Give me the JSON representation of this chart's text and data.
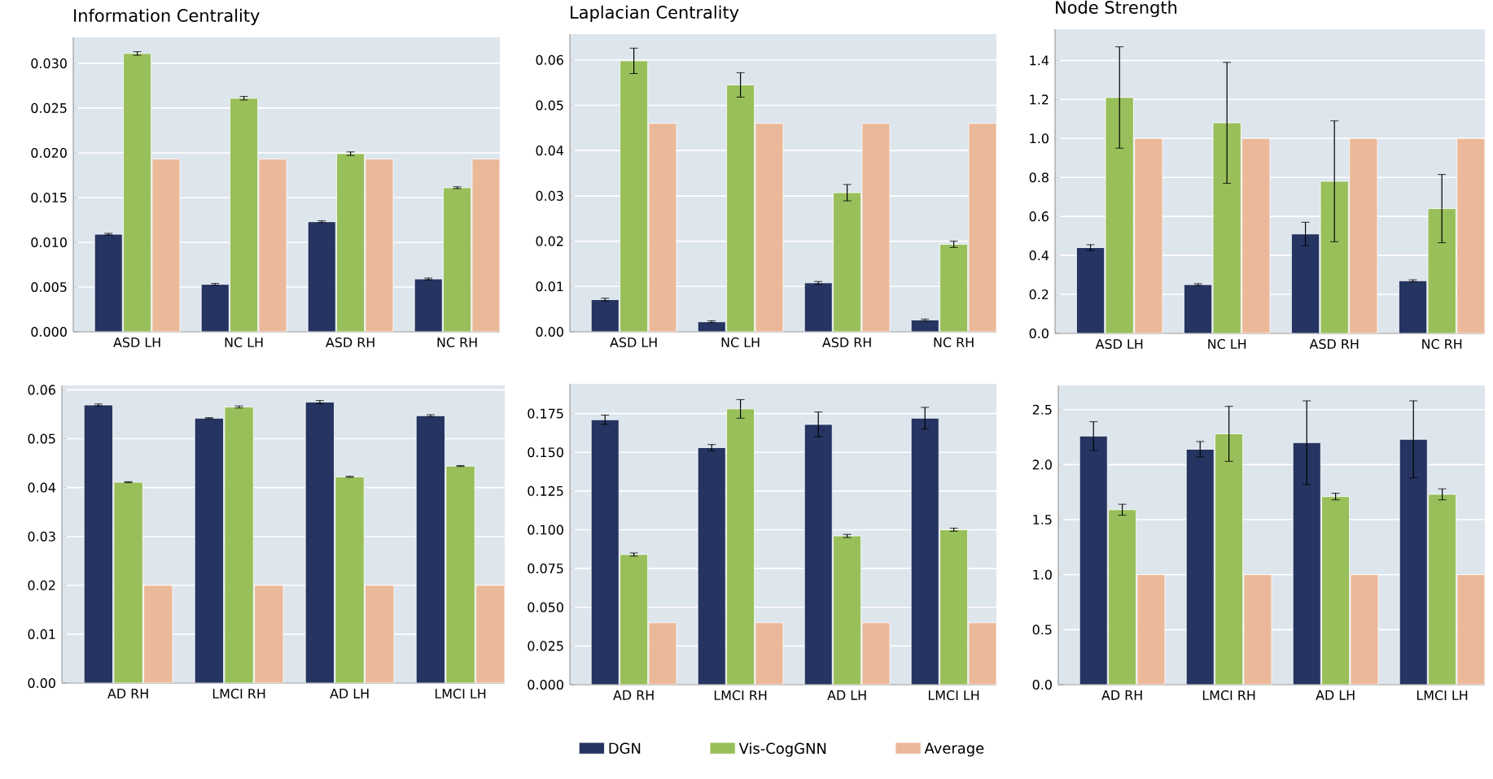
{
  "chart_data": [
    {
      "type": "bar",
      "title": "Information Centrality",
      "categories": [
        "ASD LH",
        "NC LH",
        "ASD RH",
        "NC RH"
      ],
      "ylim": [
        0,
        0.0329
      ],
      "yticks": [
        {
          "value": 0,
          "label": "0.000"
        },
        {
          "value": 0.005,
          "label": "0.005"
        },
        {
          "value": 0.01,
          "label": "0.010"
        },
        {
          "value": 0.015,
          "label": "0.015"
        },
        {
          "value": 0.02,
          "label": "0.020"
        },
        {
          "value": 0.025,
          "label": "0.025"
        },
        {
          "value": 0.03,
          "label": "0.030"
        }
      ],
      "grid": "y",
      "series": [
        {
          "color": "#253461",
          "values": [
            0.0109,
            0.0053,
            0.0123,
            0.0059
          ],
          "errors": [
            0.0001,
            0.0001,
            0.0001,
            0.0001
          ]
        },
        {
          "color": "#98bf5a",
          "values": [
            0.0311,
            0.0261,
            0.0199,
            0.0161
          ],
          "errors": [
            0.0002,
            0.0002,
            0.0002,
            0.0001
          ]
        },
        {
          "color": "#ebb99a",
          "values": [
            0.0193,
            0.0193,
            0.0193,
            0.0193
          ]
        }
      ]
    },
    {
      "type": "bar",
      "title": "Laplacian Centrality",
      "categories": [
        "ASD LH",
        "NC LH",
        "ASD RH",
        "NC RH"
      ],
      "ylim": [
        0,
        0.0657
      ],
      "yticks": [
        {
          "value": 0,
          "label": "0.00"
        },
        {
          "value": 0.01,
          "label": "0.01"
        },
        {
          "value": 0.02,
          "label": "0.02"
        },
        {
          "value": 0.03,
          "label": "0.03"
        },
        {
          "value": 0.04,
          "label": "0.04"
        },
        {
          "value": 0.05,
          "label": "0.05"
        },
        {
          "value": 0.06,
          "label": "0.06"
        }
      ],
      "grid": "y",
      "series": [
        {
          "color": "#253461",
          "values": [
            0.0071,
            0.0022,
            0.0108,
            0.0026
          ],
          "errors": [
            0.0003,
            0.0002,
            0.0003,
            0.0002
          ]
        },
        {
          "color": "#98bf5a",
          "values": [
            0.0598,
            0.0545,
            0.0307,
            0.0193
          ],
          "errors": [
            0.0028,
            0.0027,
            0.0018,
            0.0007
          ]
        },
        {
          "color": "#ebb99a",
          "values": [
            0.046,
            0.046,
            0.046,
            0.046
          ]
        }
      ]
    },
    {
      "type": "bar",
      "title": "Node Strength",
      "categories": [
        "ASD LH",
        "NC LH",
        "ASD RH",
        "NC RH"
      ],
      "ylim": [
        0,
        1.56
      ],
      "yticks": [
        {
          "value": 0,
          "label": "0.0"
        },
        {
          "value": 0.2,
          "label": "0.2"
        },
        {
          "value": 0.4,
          "label": "0.4"
        },
        {
          "value": 0.6,
          "label": "0.6"
        },
        {
          "value": 0.8,
          "label": "0.8"
        },
        {
          "value": 1,
          "label": "1.0"
        },
        {
          "value": 1.2,
          "label": "1.2"
        },
        {
          "value": 1.4,
          "label": "1.4"
        }
      ],
      "grid": "y",
      "series": [
        {
          "color": "#253461",
          "values": [
            0.44,
            0.25,
            0.51,
            0.27
          ],
          "errors": [
            0.015,
            0.005,
            0.06,
            0.005
          ]
        },
        {
          "color": "#98bf5a",
          "values": [
            1.21,
            1.08,
            0.78,
            0.64
          ],
          "errors": [
            0.26,
            0.31,
            0.31,
            0.175
          ]
        },
        {
          "color": "#ebb99a",
          "values": [
            1.0,
            1.0,
            1.0,
            1.0
          ]
        }
      ]
    },
    {
      "type": "bar",
      "categories": [
        "AD RH",
        "LMCI RH",
        "AD LH",
        "LMCI LH"
      ],
      "ylim": [
        0,
        0.0609
      ],
      "yticks": [
        {
          "value": 0,
          "label": "0.00"
        },
        {
          "value": 0.01,
          "label": "0.01"
        },
        {
          "value": 0.02,
          "label": "0.02"
        },
        {
          "value": 0.03,
          "label": "0.03"
        },
        {
          "value": 0.04,
          "label": "0.04"
        },
        {
          "value": 0.05,
          "label": "0.05"
        },
        {
          "value": 0.06,
          "label": "0.06"
        }
      ],
      "grid": "y",
      "series": [
        {
          "color": "#253461",
          "values": [
            0.0569,
            0.0542,
            0.0575,
            0.0547
          ],
          "errors": [
            0.0002,
            0.0001,
            0.0003,
            0.0002
          ]
        },
        {
          "color": "#98bf5a",
          "values": [
            0.0411,
            0.0565,
            0.0422,
            0.0444
          ],
          "errors": [
            0.0001,
            0.0002,
            0.0001,
            0.0001
          ]
        },
        {
          "color": "#ebb99a",
          "values": [
            0.02,
            0.02,
            0.02,
            0.02
          ]
        }
      ]
    },
    {
      "type": "bar",
      "categories": [
        "AD RH",
        "LMCI RH",
        "AD LH",
        "LMCI LH"
      ],
      "ylim": [
        0,
        0.1942
      ],
      "yticks": [
        {
          "value": 0,
          "label": "0.000"
        },
        {
          "value": 0.025,
          "label": "0.025"
        },
        {
          "value": 0.05,
          "label": "0.050"
        },
        {
          "value": 0.075,
          "label": "0.075"
        },
        {
          "value": 0.1,
          "label": "0.100"
        },
        {
          "value": 0.125,
          "label": "0.125"
        },
        {
          "value": 0.15,
          "label": "0.150"
        },
        {
          "value": 0.175,
          "label": "0.175"
        }
      ],
      "grid": "y",
      "legend": "bottom",
      "series": [
        {
          "name": "DGN",
          "color": "#253461",
          "values": [
            0.171,
            0.153,
            0.168,
            0.172
          ],
          "errors": [
            0.003,
            0.002,
            0.008,
            0.007
          ]
        },
        {
          "name": "Vis-CogGNN",
          "color": "#98bf5a",
          "values": [
            0.084,
            0.178,
            0.096,
            0.1
          ],
          "errors": [
            0.001,
            0.006,
            0.001,
            0.001
          ]
        },
        {
          "name": "Average",
          "color": "#ebb99a",
          "values": [
            0.04,
            0.04,
            0.04,
            0.04
          ]
        }
      ]
    },
    {
      "type": "bar",
      "categories": [
        "AD RH",
        "LMCI RH",
        "AD LH",
        "LMCI LH"
      ],
      "ylim": [
        0,
        2.72
      ],
      "yticks": [
        {
          "value": 0,
          "label": "0.0"
        },
        {
          "value": 0.5,
          "label": "0.5"
        },
        {
          "value": 1,
          "label": "1.0"
        },
        {
          "value": 1.5,
          "label": "1.5"
        },
        {
          "value": 2,
          "label": "2.0"
        },
        {
          "value": 2.5,
          "label": "2.5"
        }
      ],
      "grid": "y",
      "series": [
        {
          "color": "#253461",
          "values": [
            2.26,
            2.14,
            2.2,
            2.23
          ],
          "errors": [
            0.13,
            0.07,
            0.38,
            0.35
          ]
        },
        {
          "color": "#98bf5a",
          "values": [
            1.59,
            2.28,
            1.71,
            1.73
          ],
          "errors": [
            0.05,
            0.25,
            0.03,
            0.05
          ]
        },
        {
          "color": "#ebb99a",
          "values": [
            1.0,
            1.0,
            1.0,
            1.0
          ]
        }
      ]
    }
  ]
}
